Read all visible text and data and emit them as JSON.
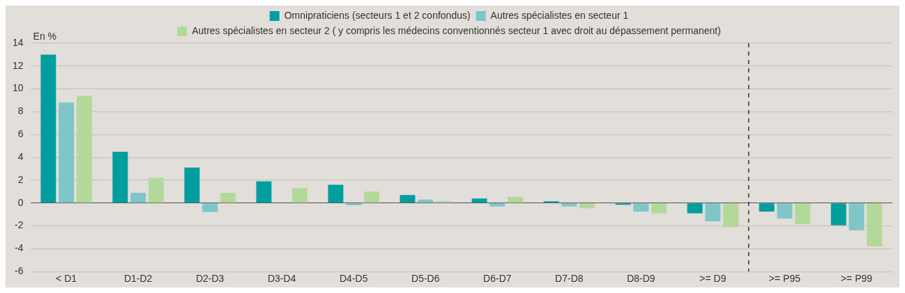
{
  "chart_data": {
    "type": "bar",
    "ylabel": "En %",
    "categories": [
      "< D1",
      "D1-D2",
      "D2-D3",
      "D3-D4",
      "D4-D5",
      "D5-D6",
      "D6-D7",
      "D7-D8",
      "D8-D9",
      ">= D9",
      ">= P95",
      ">= P99"
    ],
    "series": [
      {
        "name": "Omnipraticiens (secteurs 1 et 2 confondus)",
        "color": "#009e9e",
        "values": [
          13.0,
          4.5,
          3.1,
          1.9,
          1.6,
          0.7,
          0.4,
          0.15,
          -0.15,
          -0.9,
          -0.75,
          -1.95
        ]
      },
      {
        "name": "Autres spécialistes en secteur 1",
        "color": "#7ec6c8",
        "values": [
          8.8,
          0.9,
          -0.8,
          0,
          -0.2,
          0.3,
          -0.3,
          -0.3,
          -0.75,
          -1.6,
          -1.35,
          -2.4
        ]
      },
      {
        "name": "Autres spécialistes en secteur 2 ( y compris les médecins conventionnés secteur 1 avec droit au dépassement permanent)",
        "color": "#b2d99a",
        "values": [
          9.4,
          2.2,
          0.9,
          1.3,
          1.0,
          0.15,
          0.55,
          -0.45,
          -0.9,
          -2.1,
          -1.85,
          -3.8
        ]
      }
    ],
    "ylim": [
      -6,
      14
    ],
    "yticks": [
      -6,
      -4,
      -2,
      0,
      2,
      4,
      6,
      8,
      10,
      12,
      14
    ],
    "grid": "y",
    "legend": "top"
  }
}
